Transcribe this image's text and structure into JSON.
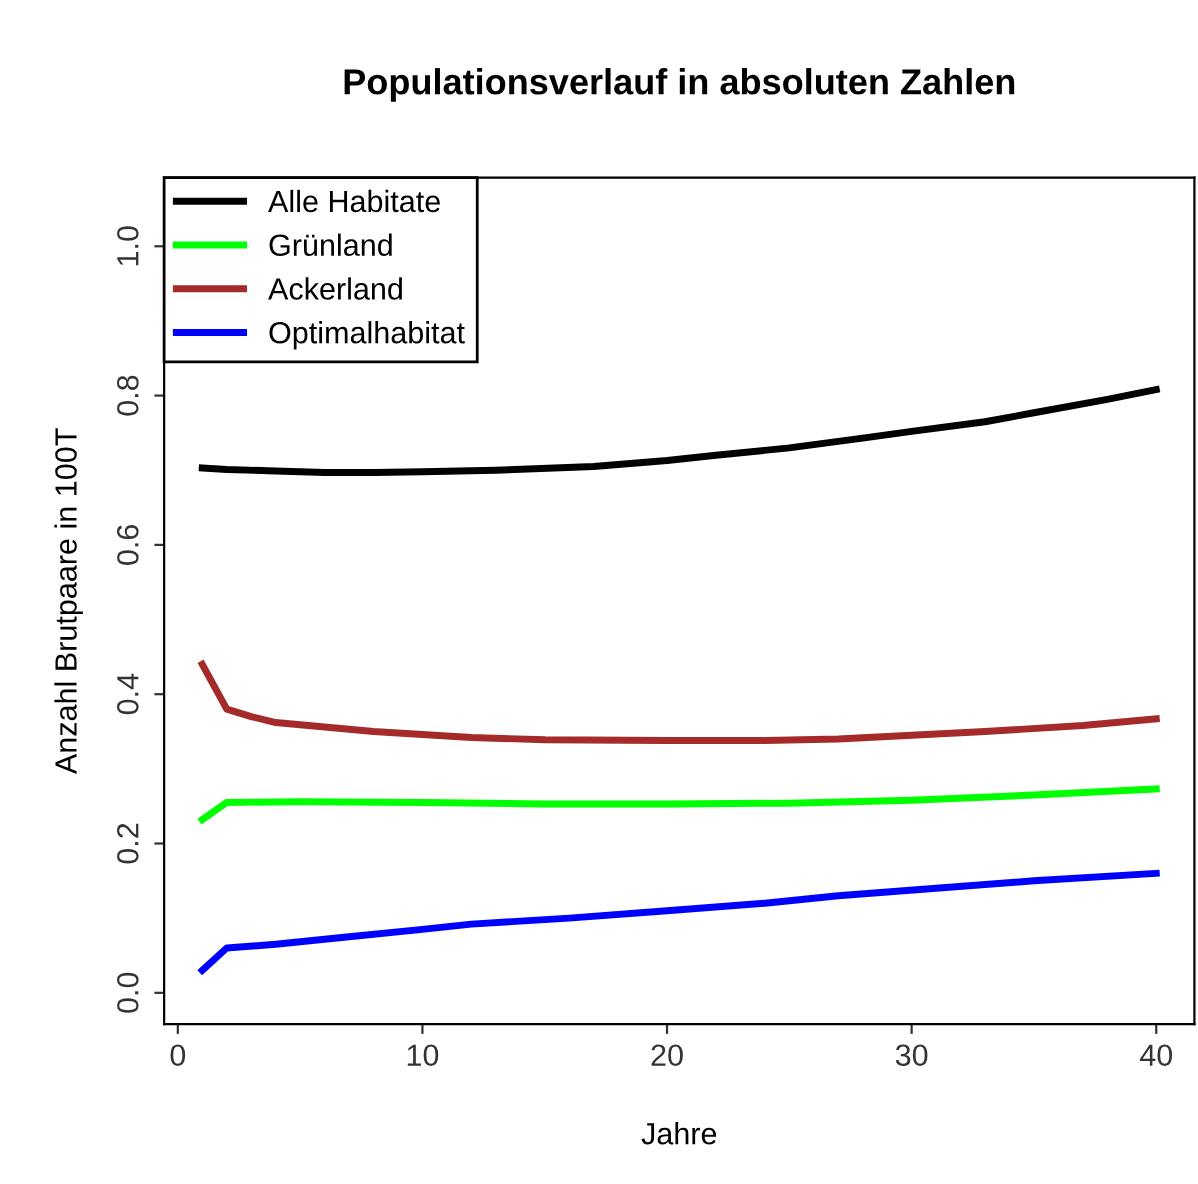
{
  "chart_data": {
    "type": "line",
    "title": "Populationsverlauf in absoluten Zahlen",
    "xlabel": "Jahre",
    "ylabel": "Anzahl Brutpaare in 100T",
    "xlim": [
      -0.56,
      41.56
    ],
    "xticks": [
      0,
      10,
      20,
      30,
      40
    ],
    "ylim": [
      -0.042,
      1.092
    ],
    "yticks": [
      {
        "value": 0,
        "label": "0.0"
      },
      0.2,
      0.4,
      0.6,
      0.8,
      {
        "value": 1,
        "label": "1.0"
      }
    ],
    "grid": false,
    "legend": "top left",
    "marker": "none",
    "line_style": "solid",
    "series": [
      {
        "name": "Alle Habitate",
        "color": "#000000",
        "x": [
          1,
          2,
          4,
          6,
          8,
          10,
          13,
          17,
          20,
          22,
          25,
          28,
          30,
          33,
          35,
          38,
          40
        ],
        "values": [
          0.703,
          0.701,
          0.699,
          0.697,
          0.697,
          0.698,
          0.7,
          0.705,
          0.713,
          0.72,
          0.73,
          0.743,
          0.752,
          0.765,
          0.777,
          0.795,
          0.808
        ]
      },
      {
        "name": "Grünland",
        "color": "#00ff00",
        "x": [
          1,
          2,
          5,
          10,
          15,
          20,
          25,
          30,
          35,
          40
        ],
        "values": [
          0.232,
          0.255,
          0.256,
          0.255,
          0.253,
          0.253,
          0.254,
          0.258,
          0.265,
          0.273
        ]
      },
      {
        "name": "Ackerland",
        "color": "#a52a2a",
        "x": [
          1,
          2,
          3,
          4,
          6,
          8,
          10,
          12,
          15,
          20,
          24,
          27,
          30,
          33,
          37,
          40
        ],
        "values": [
          0.44,
          0.38,
          0.37,
          0.362,
          0.356,
          0.35,
          0.346,
          0.342,
          0.339,
          0.338,
          0.338,
          0.34,
          0.345,
          0.35,
          0.358,
          0.367
        ]
      },
      {
        "name": "Optimalhabitat",
        "color": "#0000ff",
        "x": [
          1,
          2,
          4,
          7,
          10,
          12,
          16,
          20,
          24,
          27,
          31,
          35,
          40
        ],
        "values": [
          0.03,
          0.06,
          0.065,
          0.075,
          0.085,
          0.092,
          0.1,
          0.11,
          0.12,
          0.13,
          0.14,
          0.15,
          0.16
        ]
      }
    ]
  }
}
